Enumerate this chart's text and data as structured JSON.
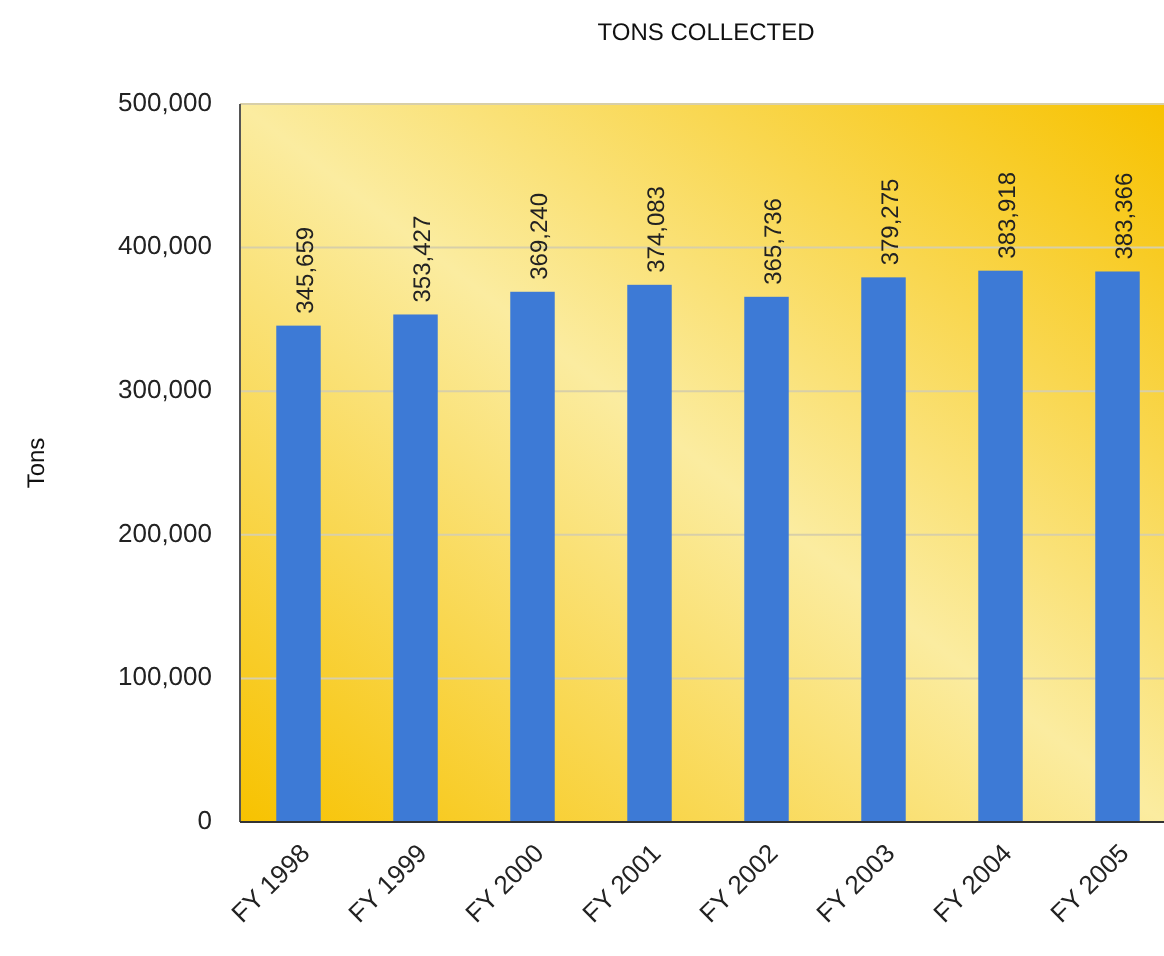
{
  "chart_data": {
    "type": "bar",
    "title": "TONS COLLECTED",
    "ylabel": "Tons",
    "categories": [
      "FY 1998",
      "FY 1999",
      "FY 2000",
      "FY 2001",
      "FY 2002",
      "FY 2003",
      "FY 2004",
      "FY 2005"
    ],
    "values": [
      345659,
      353427,
      369240,
      374083,
      365736,
      379275,
      383918,
      383366
    ],
    "color": "#3d7ad6",
    "ylim": [
      0,
      500000
    ],
    "yticks": [
      {
        "value": 0,
        "label": "0"
      },
      {
        "value": 100000,
        "label": "100,000"
      },
      {
        "value": 200000,
        "label": "200,000"
      },
      {
        "value": 300000,
        "label": "300,000"
      },
      {
        "value": 400000,
        "label": "400,000"
      },
      {
        "value": 500000,
        "label": "500,000"
      }
    ],
    "value_labels": [
      "345,659",
      "353,427",
      "369,240",
      "374,083",
      "365,736",
      "379,275",
      "383,918",
      "383,366"
    ],
    "grid": "y"
  }
}
